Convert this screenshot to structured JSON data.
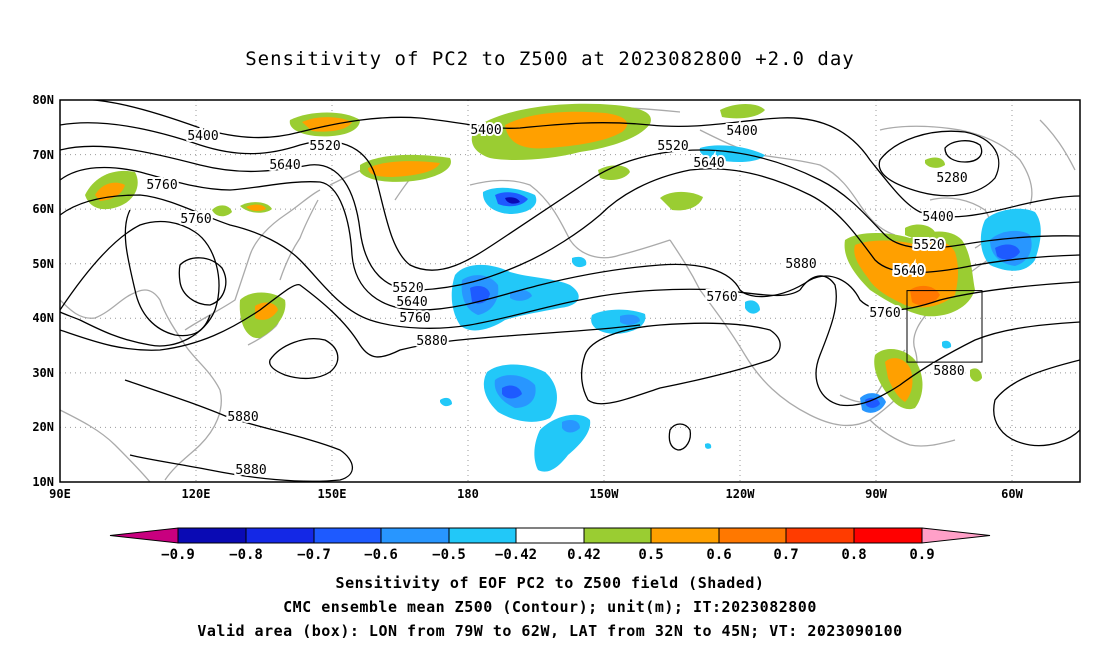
{
  "title": "Sensitivity of PC2 to Z500 at 2023082800 +2.0 day",
  "lat_labels": [
    "80N",
    "70N",
    "60N",
    "50N",
    "40N",
    "30N",
    "20N",
    "10N"
  ],
  "lon_labels": [
    "90E",
    "120E",
    "150E",
    "180",
    "150W",
    "120W",
    "90W",
    "60W"
  ],
  "contour_labels": [
    "5400",
    "5520",
    "5640",
    "5760",
    "5760",
    "5400",
    "5520",
    "5640",
    "5400",
    "5520",
    "5640",
    "5760",
    "5880",
    "5760",
    "5880",
    "5280",
    "5400",
    "5520",
    "5640",
    "5760",
    "5880",
    "5880",
    "5880"
  ],
  "colorbar": {
    "labels": [
      "−0.9",
      "−0.8",
      "−0.7",
      "−0.6",
      "−0.5",
      "−0.42",
      "0.42",
      "0.5",
      "0.6",
      "0.7",
      "0.8",
      "0.9"
    ],
    "colors": [
      "#c8007f",
      "#0a0ab4",
      "#1428e6",
      "#1e5aff",
      "#2896ff",
      "#22c8f8",
      "#ffffff",
      "#9acd32",
      "#ffa000",
      "#ff7800",
      "#ff3c00",
      "#ff0000",
      "#ffa0c8"
    ]
  },
  "valid_box": {
    "lon_min": -79,
    "lon_max": -62,
    "lat_min": 32,
    "lat_max": 45
  },
  "footer": {
    "line1": "Sensitivity of EOF PC2 to Z500 field (Shaded)",
    "line2": "CMC ensemble mean Z500 (Contour); unit(m); IT:2023082800",
    "line3": "Valid area (box): LON from 79W to 62W, LAT from 32N to 45N; VT: 2023090100"
  }
}
